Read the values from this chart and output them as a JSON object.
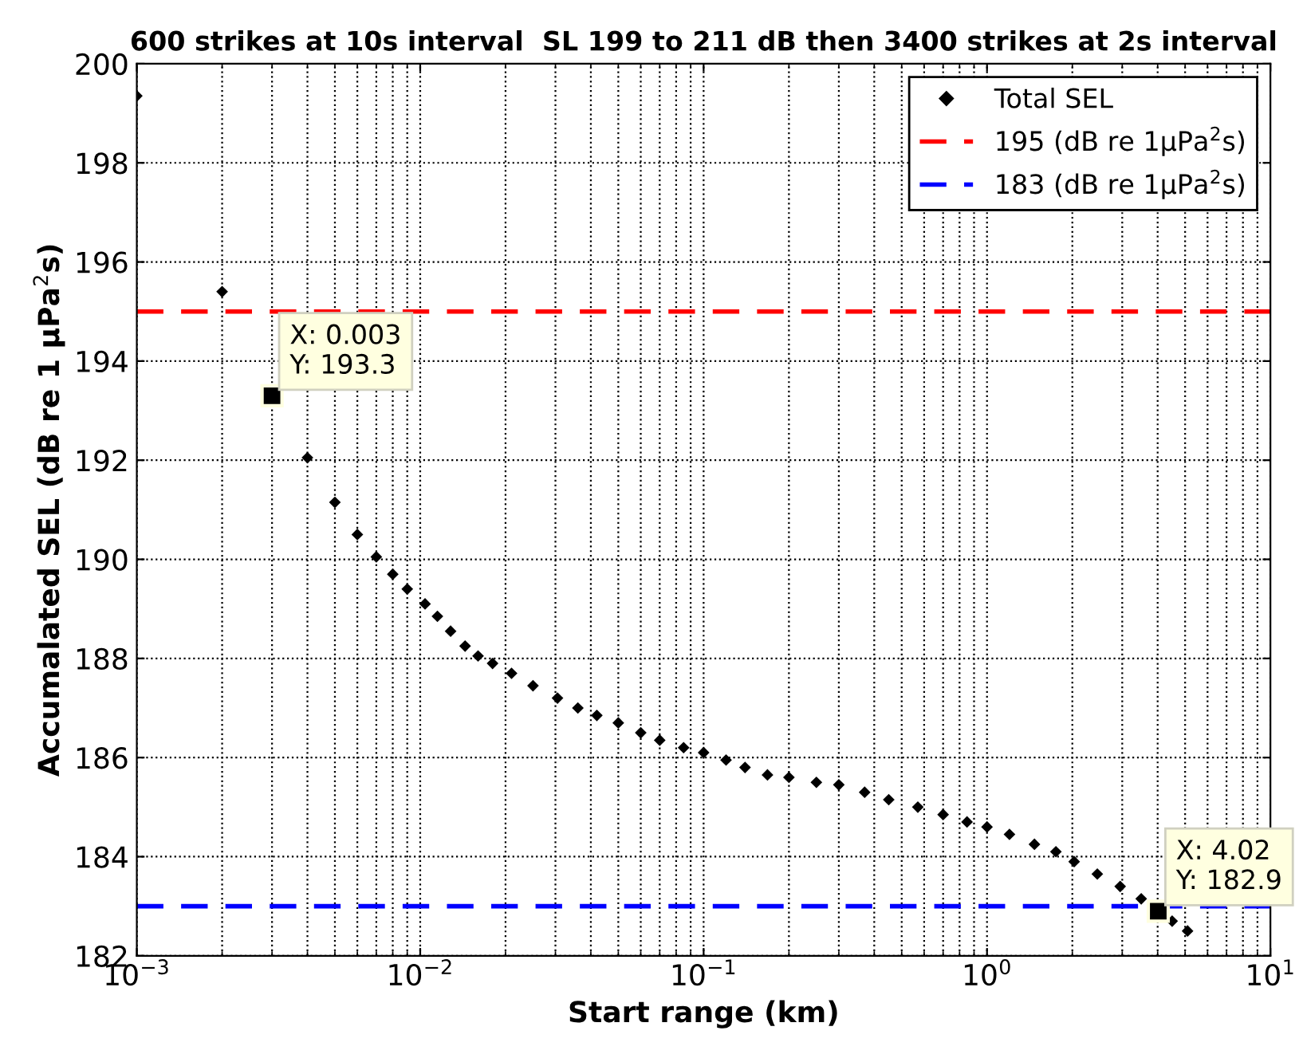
{
  "chart_data": {
    "type": "scatter",
    "title": "600 strikes at 10s interval  SL 199 to 211 dB then 3400 strikes at 2s interval",
    "xlabel": "Start range (km)",
    "ylabel": "Accumalated SEL (dB re 1 μPa$^{2}$s)",
    "log": "x",
    "xlim": [
      0.001,
      10
    ],
    "ylim": [
      182,
      200
    ],
    "xticks": [
      {
        "value": 0.001,
        "label": "10$^{−3}$"
      },
      {
        "value": 0.01,
        "label": "10$^{−2}$"
      },
      {
        "value": 0.1,
        "label": "10$^{−1}$"
      },
      {
        "value": 1,
        "label": "10$^{0}$"
      },
      {
        "value": 10,
        "label": "10$^{1}$"
      }
    ],
    "yticks": [
      182,
      184,
      186,
      188,
      190,
      192,
      194,
      196,
      198,
      200
    ],
    "grid": true,
    "legend": "top right",
    "marker": "diamond",
    "series": [
      {
        "name": "Total SEL",
        "color": "#000000",
        "x": [
          0.001,
          0.002,
          0.003,
          0.004,
          0.005,
          0.006,
          0.007,
          0.008,
          0.009,
          0.0104,
          0.0115,
          0.0128,
          0.0144,
          0.016,
          0.018,
          0.021,
          0.025,
          0.0305,
          0.036,
          0.042,
          0.05,
          0.06,
          0.07,
          0.085,
          0.1,
          0.12,
          0.14,
          0.168,
          0.2,
          0.25,
          0.3,
          0.37,
          0.45,
          0.57,
          0.7,
          0.85,
          1.0,
          1.2,
          1.47,
          1.75,
          2.03,
          2.45,
          2.95,
          3.5,
          4.02,
          4.5,
          5.1
        ],
        "values": [
          199.35,
          195.4,
          193.3,
          192.05,
          191.15,
          190.5,
          190.05,
          189.7,
          189.4,
          189.1,
          188.85,
          188.55,
          188.25,
          188.05,
          187.9,
          187.7,
          187.45,
          187.2,
          187.0,
          186.85,
          186.7,
          186.5,
          186.35,
          186.2,
          186.1,
          185.95,
          185.8,
          185.65,
          185.6,
          185.5,
          185.45,
          185.3,
          185.15,
          185.0,
          184.85,
          184.7,
          184.6,
          184.45,
          184.25,
          184.1,
          183.9,
          183.65,
          183.4,
          183.15,
          182.9,
          182.7,
          182.5
        ]
      }
    ],
    "ref_lines": [
      {
        "axis": "y",
        "value": 195,
        "label": "195 (dB re 1μPa$^{2}$s)",
        "color": "#ff0000",
        "line_style": "dashed"
      },
      {
        "axis": "y",
        "value": 183,
        "label": "183 (dB re 1μPa$^{2}$s)",
        "color": "#0000ff",
        "line_style": "dashed"
      }
    ],
    "annotations": [
      {
        "text": "X: 0.003\nY: 193.3",
        "x": 0.003,
        "y": 193.3
      },
      {
        "text": "X: 4.02\nY: 182.9",
        "x": 4.02,
        "y": 182.9
      }
    ]
  }
}
